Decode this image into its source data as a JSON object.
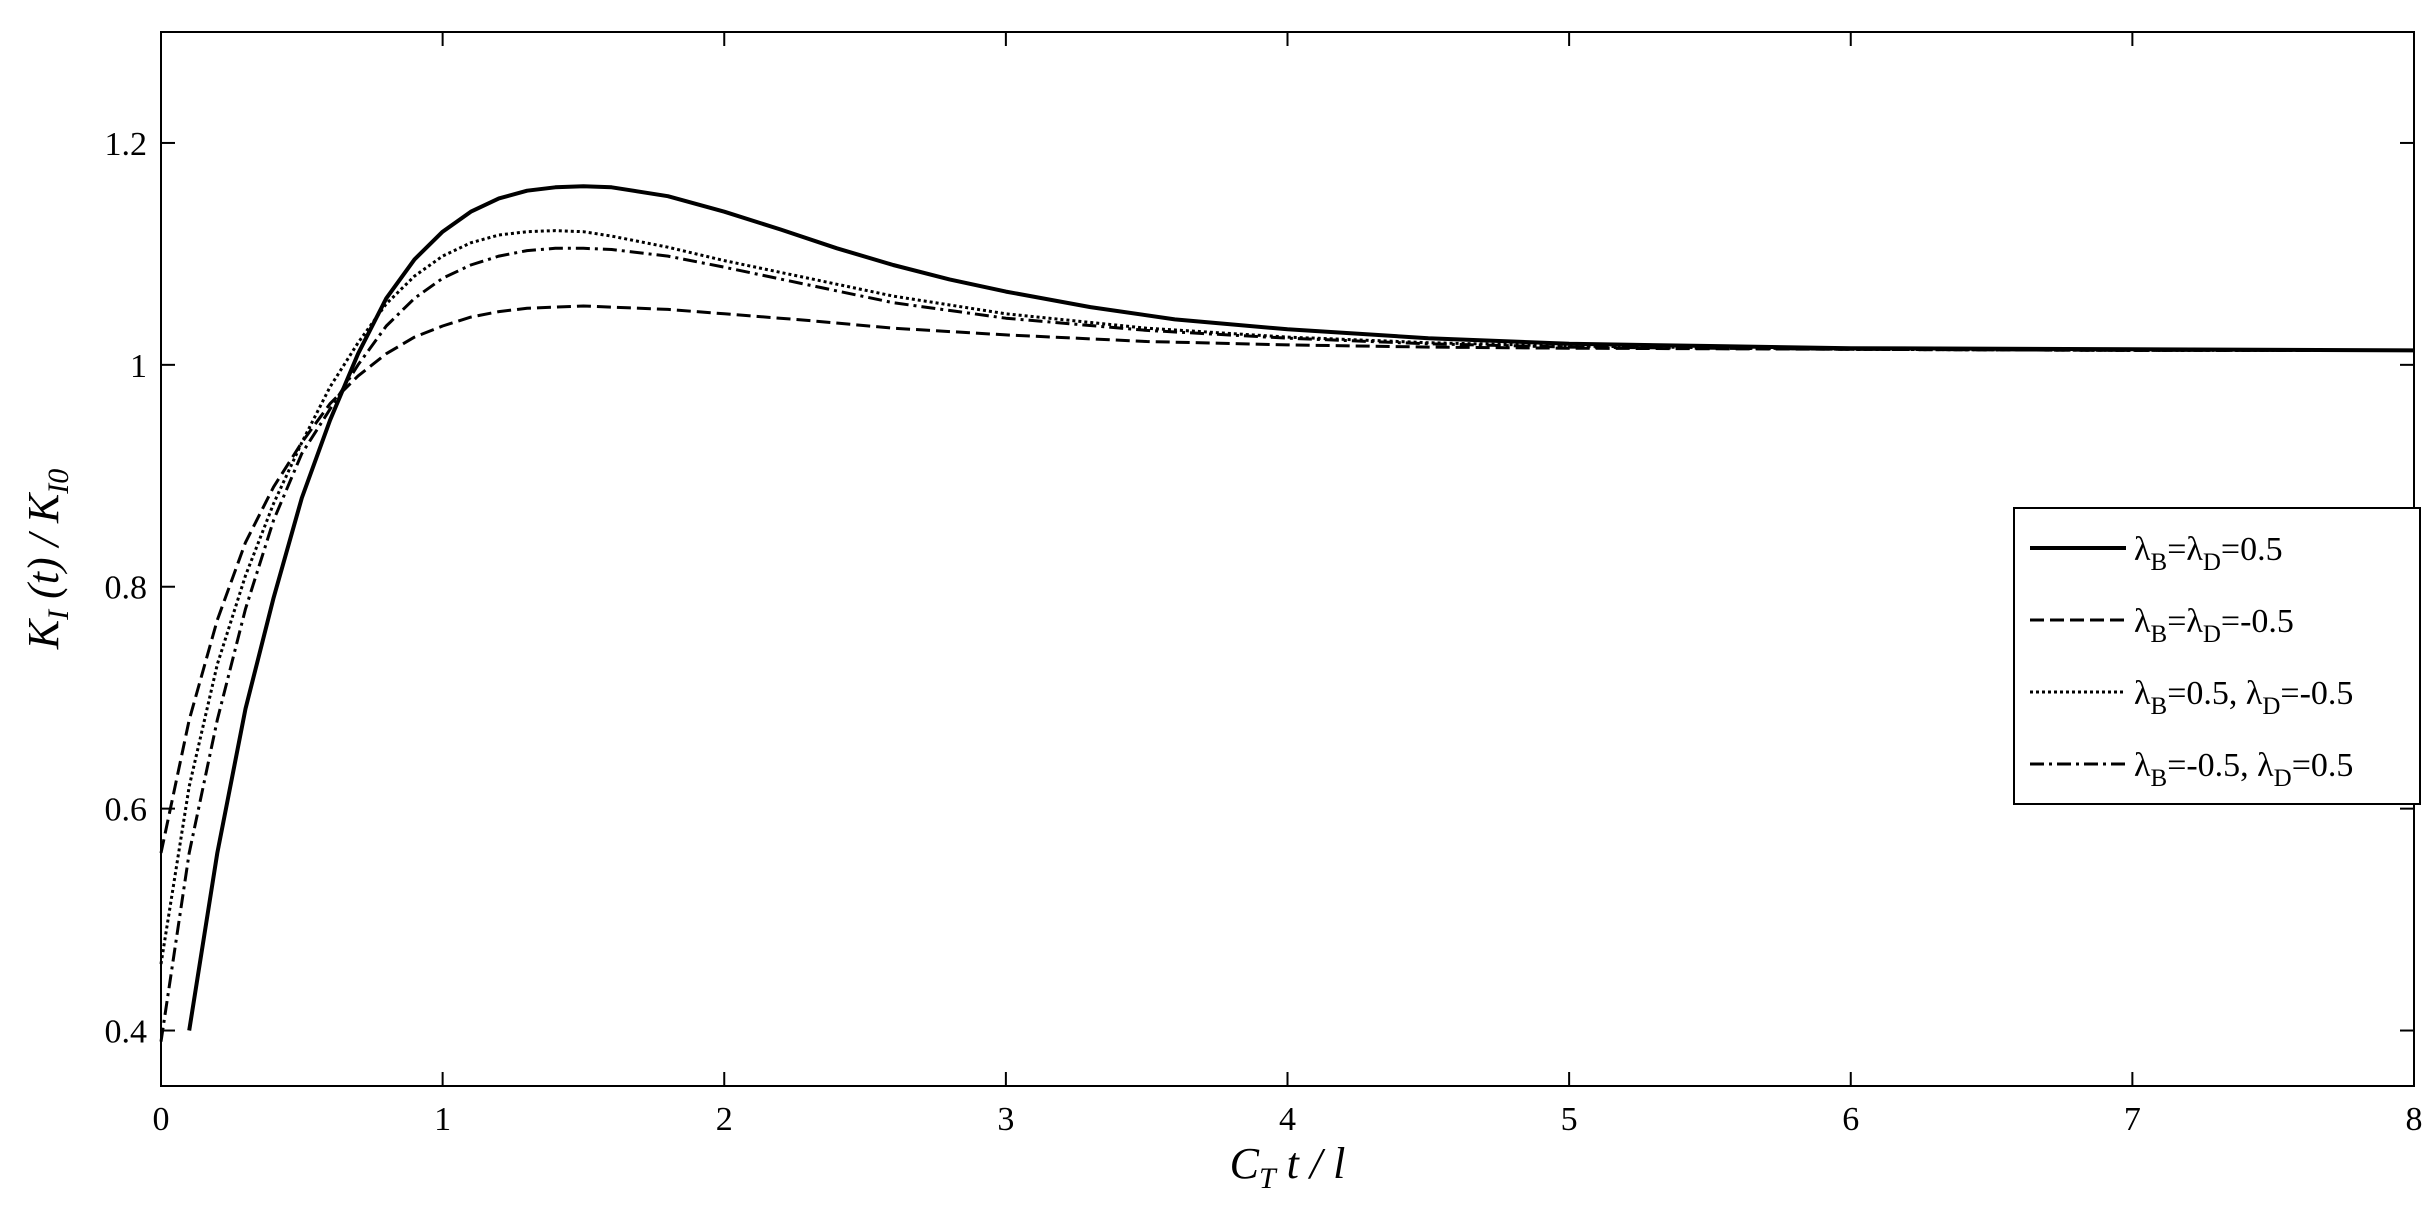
{
  "chart_data": {
    "type": "line",
    "title": "",
    "xlabel": {
      "main": "C",
      "sub": "T",
      "rest": " t / l"
    },
    "ylabel": {
      "k": "K",
      "ksub": "I",
      "mid": " (t) / K",
      "k0sub": "I0"
    },
    "xlim": [
      0,
      8
    ],
    "ylim": [
      0.35,
      1.3
    ],
    "xticks": [
      0,
      1,
      2,
      3,
      4,
      5,
      6,
      7,
      8
    ],
    "xtick_labels": [
      "0",
      "1",
      "2",
      "3",
      "4",
      "5",
      "6",
      "7",
      "8"
    ],
    "yticks": [
      0.4,
      0.6,
      0.8,
      1.0,
      1.2
    ],
    "ytick_labels": [
      "0.4",
      "0.6",
      "0.8",
      "1",
      "1.2"
    ],
    "grid": false,
    "legend_position": "right",
    "series": [
      {
        "style": "solid",
        "legend": [
          {
            "t": "λ"
          },
          {
            "t": "B",
            "sub": true
          },
          {
            "t": "=λ"
          },
          {
            "t": "D",
            "sub": true
          },
          {
            "t": "=0.5"
          }
        ],
        "x": [
          0.1,
          0.2,
          0.3,
          0.4,
          0.5,
          0.6,
          0.7,
          0.8,
          0.9,
          1.0,
          1.1,
          1.2,
          1.3,
          1.4,
          1.5,
          1.6,
          1.8,
          2.0,
          2.2,
          2.4,
          2.6,
          2.8,
          3.0,
          3.3,
          3.6,
          4.0,
          4.5,
          5.0,
          5.5,
          6.0,
          7.0,
          8.0
        ],
        "y": [
          0.4,
          0.56,
          0.69,
          0.79,
          0.88,
          0.95,
          1.01,
          1.06,
          1.095,
          1.12,
          1.138,
          1.15,
          1.157,
          1.16,
          1.161,
          1.16,
          1.152,
          1.138,
          1.122,
          1.105,
          1.09,
          1.077,
          1.066,
          1.052,
          1.041,
          1.032,
          1.024,
          1.019,
          1.017,
          1.015,
          1.014,
          1.013
        ]
      },
      {
        "style": "dashed",
        "legend": [
          {
            "t": "λ"
          },
          {
            "t": "B",
            "sub": true
          },
          {
            "t": "=λ"
          },
          {
            "t": "D",
            "sub": true
          },
          {
            "t": "=-0.5"
          }
        ],
        "x": [
          0.0,
          0.1,
          0.2,
          0.3,
          0.4,
          0.5,
          0.6,
          0.7,
          0.8,
          0.9,
          1.0,
          1.1,
          1.2,
          1.3,
          1.4,
          1.5,
          1.6,
          1.8,
          2.0,
          2.3,
          2.6,
          3.0,
          3.5,
          4.0,
          4.5,
          5.0,
          6.0,
          7.0,
          8.0
        ],
        "y": [
          0.56,
          0.68,
          0.77,
          0.84,
          0.89,
          0.93,
          0.965,
          0.99,
          1.01,
          1.025,
          1.035,
          1.043,
          1.048,
          1.051,
          1.052,
          1.053,
          1.052,
          1.05,
          1.046,
          1.04,
          1.033,
          1.027,
          1.021,
          1.018,
          1.016,
          1.015,
          1.014,
          1.013,
          1.013
        ]
      },
      {
        "style": "dotted",
        "legend": [
          {
            "t": "λ"
          },
          {
            "t": "B",
            "sub": true
          },
          {
            "t": "=0.5,  λ"
          },
          {
            "t": "D",
            "sub": true
          },
          {
            "t": "=-0.5"
          }
        ],
        "x": [
          0.0,
          0.1,
          0.2,
          0.3,
          0.4,
          0.5,
          0.6,
          0.7,
          0.8,
          0.9,
          1.0,
          1.1,
          1.2,
          1.3,
          1.4,
          1.5,
          1.6,
          1.8,
          2.0,
          2.3,
          2.6,
          3.0,
          3.5,
          4.0,
          4.5,
          5.0,
          6.0,
          7.0,
          8.0
        ],
        "y": [
          0.46,
          0.62,
          0.73,
          0.81,
          0.875,
          0.93,
          0.98,
          1.02,
          1.055,
          1.08,
          1.098,
          1.11,
          1.117,
          1.12,
          1.121,
          1.12,
          1.116,
          1.106,
          1.094,
          1.078,
          1.062,
          1.046,
          1.033,
          1.025,
          1.02,
          1.017,
          1.014,
          1.013,
          1.013
        ]
      },
      {
        "style": "dashdot",
        "legend": [
          {
            "t": "λ"
          },
          {
            "t": "B",
            "sub": true
          },
          {
            "t": "=-0.5,  λ"
          },
          {
            "t": "D",
            "sub": true
          },
          {
            "t": "=0.5"
          }
        ],
        "x": [
          0.0,
          0.1,
          0.2,
          0.3,
          0.4,
          0.5,
          0.6,
          0.7,
          0.8,
          0.9,
          1.0,
          1.1,
          1.2,
          1.3,
          1.4,
          1.5,
          1.6,
          1.8,
          2.0,
          2.3,
          2.6,
          3.0,
          3.5,
          4.0,
          4.5,
          5.0,
          6.0,
          7.0,
          8.0
        ],
        "y": [
          0.39,
          0.56,
          0.68,
          0.78,
          0.86,
          0.92,
          0.96,
          1.0,
          1.035,
          1.06,
          1.078,
          1.09,
          1.098,
          1.103,
          1.105,
          1.105,
          1.104,
          1.098,
          1.088,
          1.072,
          1.056,
          1.042,
          1.031,
          1.024,
          1.019,
          1.016,
          1.014,
          1.013,
          1.013
        ]
      }
    ]
  }
}
